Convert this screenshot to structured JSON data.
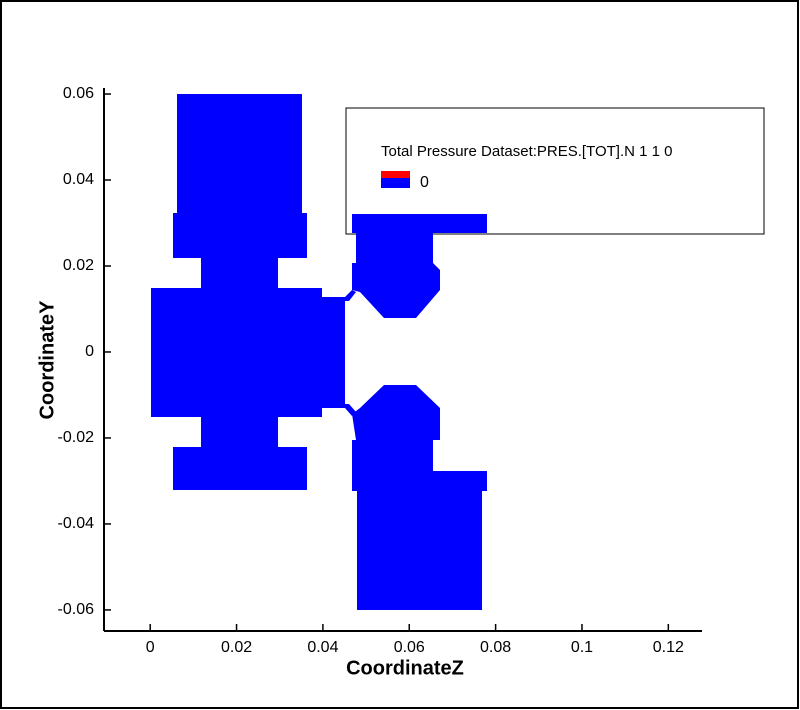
{
  "chart_data": {
    "type": "contour",
    "x_label": "CoordinateZ",
    "y_label": "CoordinateY",
    "xlim": [
      -0.0107,
      0.1278
    ],
    "ylim": [
      -0.0649,
      0.0614
    ],
    "xticks": [
      0,
      0.02,
      0.04,
      0.06,
      0.08,
      0.1,
      0.12
    ],
    "yticks": [
      0.06,
      0.04,
      0.02,
      0,
      -0.02,
      -0.04,
      -0.06
    ],
    "legend_title": "Total Pressure Dataset:PRES.[TOT].N 1 1 0",
    "levels": [
      0
    ],
    "level_colors": [
      "#ff0000",
      "#0000ff"
    ],
    "fill_color": "#0000ff"
  }
}
